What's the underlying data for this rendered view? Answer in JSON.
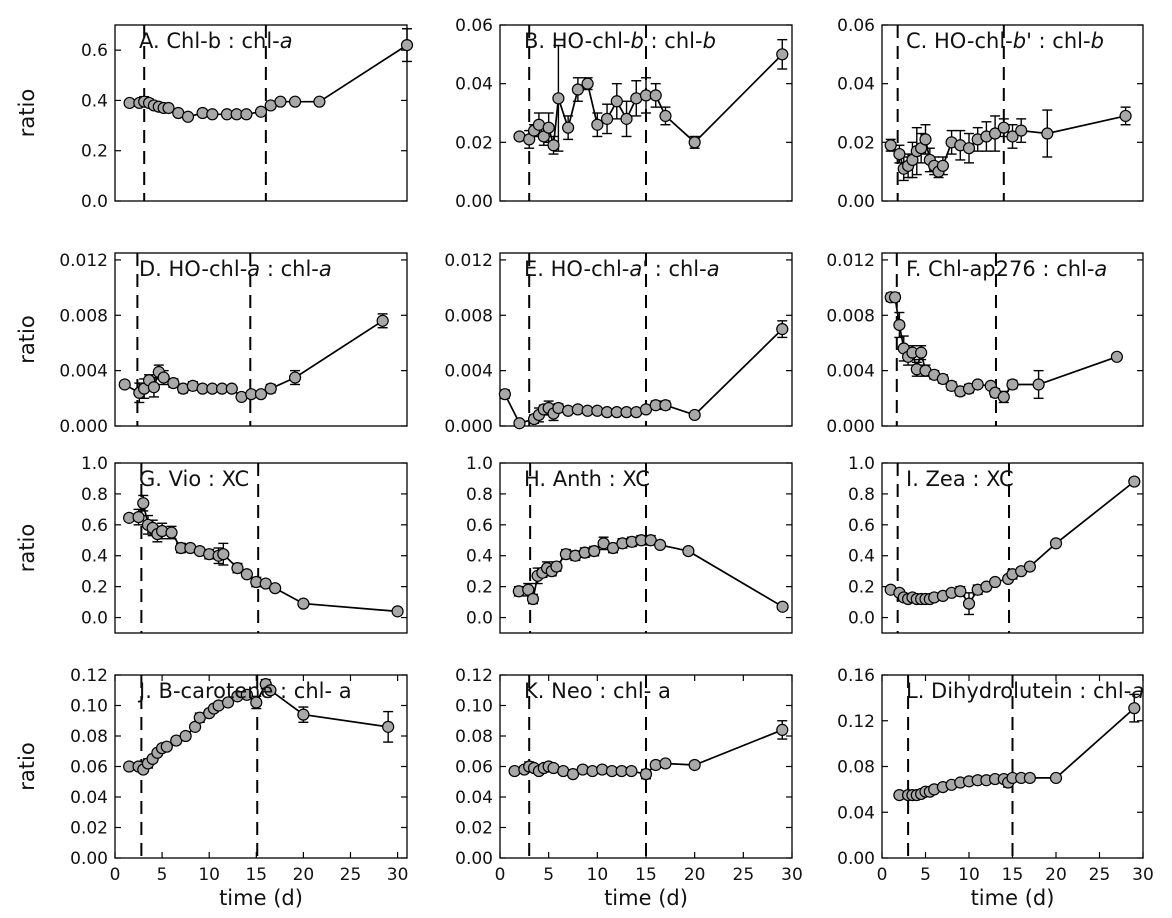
{
  "chart_data": [
    {
      "panel_id": "A",
      "type": "scatter",
      "title": "A. Chl-b : chl-a",
      "ylabel": "ratio",
      "xlabel": "",
      "xlim": [
        0,
        30
      ],
      "ylim": [
        0,
        0.7
      ],
      "yticks": [
        0.0,
        0.2,
        0.4,
        0.6
      ],
      "ytick_labels": [
        "0.0",
        "0.2",
        "0.4",
        "0.6"
      ],
      "xticks": [],
      "xtick_labels": [],
      "vlines": [
        3,
        15.5
      ],
      "x": [
        1.5,
        2.5,
        3.0,
        3.5,
        4.0,
        4.5,
        5.0,
        5.5,
        6.5,
        7.5,
        9.0,
        10.0,
        11.5,
        12.5,
        13.5,
        15.0,
        16.0,
        17.0,
        18.5,
        21.0,
        30.0
      ],
      "y": [
        0.39,
        0.39,
        0.395,
        0.39,
        0.38,
        0.375,
        0.37,
        0.37,
        0.35,
        0.335,
        0.35,
        0.345,
        0.345,
        0.345,
        0.345,
        0.355,
        0.38,
        0.395,
        0.395,
        0.395,
        0.62
      ],
      "yerr": [
        0.01,
        0.01,
        0.02,
        0.015,
        0.01,
        0.01,
        0.01,
        0.01,
        0.01,
        0.01,
        0.01,
        0.01,
        0.01,
        0.01,
        0.01,
        0.01,
        0.01,
        0.01,
        0.01,
        0.01,
        0.065
      ]
    },
    {
      "panel_id": "B",
      "type": "scatter",
      "title": "B. HO-chl-b : chl-b",
      "ylabel": "",
      "xlabel": "",
      "xlim": [
        0,
        30
      ],
      "ylim": [
        0,
        0.06
      ],
      "yticks": [
        0,
        0.02,
        0.04,
        0.06
      ],
      "ytick_labels": [
        "0.00",
        "0.02",
        "0.04",
        "0.06"
      ],
      "xticks": [],
      "xtick_labels": [],
      "vlines": [
        3,
        15
      ],
      "x": [
        2.0,
        3.0,
        3.5,
        4.0,
        4.5,
        5.0,
        5.5,
        6.0,
        7.0,
        8.0,
        9.0,
        10.0,
        11.0,
        12.0,
        13.0,
        14.0,
        15.0,
        16.0,
        17.0,
        20.0,
        29.0
      ],
      "y": [
        0.022,
        0.021,
        0.024,
        0.026,
        0.022,
        0.025,
        0.019,
        0.035,
        0.025,
        0.038,
        0.04,
        0.026,
        0.028,
        0.034,
        0.028,
        0.035,
        0.036,
        0.036,
        0.029,
        0.02,
        0.05
      ],
      "yerr": [
        0.001,
        0.003,
        0.002,
        0.004,
        0.003,
        0.005,
        0.003,
        0.018,
        0.004,
        0.004,
        0.002,
        0.004,
        0.005,
        0.006,
        0.006,
        0.006,
        0.006,
        0.004,
        0.003,
        0.002,
        0.005
      ]
    },
    {
      "panel_id": "C",
      "type": "scatter",
      "title": "C. HO-chl-b' : chl-b",
      "ylabel": "",
      "xlabel": "",
      "xlim": [
        0,
        30
      ],
      "ylim": [
        0,
        0.06
      ],
      "yticks": [
        0,
        0.02,
        0.04,
        0.06
      ],
      "ytick_labels": [
        "0.00",
        "0.02",
        "0.04",
        "0.06"
      ],
      "xticks": [],
      "xtick_labels": [],
      "vlines": [
        1.8,
        14
      ],
      "x": [
        1.0,
        2.0,
        2.5,
        3.0,
        3.5,
        4.0,
        4.5,
        5.0,
        5.5,
        6.0,
        6.5,
        7.0,
        8.0,
        9.0,
        10.0,
        11.0,
        12.0,
        13.0,
        14.0,
        15.0,
        16.0,
        19.0,
        28.0
      ],
      "y": [
        0.019,
        0.016,
        0.011,
        0.012,
        0.014,
        0.017,
        0.018,
        0.021,
        0.014,
        0.012,
        0.01,
        0.012,
        0.02,
        0.019,
        0.018,
        0.021,
        0.022,
        0.023,
        0.025,
        0.022,
        0.024,
        0.023,
        0.029
      ],
      "yerr": [
        0.002,
        0.003,
        0.004,
        0.004,
        0.006,
        0.008,
        0.005,
        0.005,
        0.004,
        0.003,
        0.002,
        0.003,
        0.004,
        0.005,
        0.005,
        0.004,
        0.005,
        0.006,
        0.003,
        0.004,
        0.004,
        0.008,
        0.003
      ]
    },
    {
      "panel_id": "D",
      "type": "scatter",
      "title": "D. HO-chl-a : chl-a",
      "ylabel": "ratio",
      "xlabel": "",
      "xlim": [
        0,
        30
      ],
      "ylim": [
        0,
        0.0125
      ],
      "yticks": [
        0,
        0.004,
        0.008,
        0.012
      ],
      "ytick_labels": [
        "0.000",
        "0.004",
        "0.008",
        "0.012"
      ],
      "xticks": [],
      "xtick_labels": [],
      "vlines": [
        2.3,
        13.9
      ],
      "x": [
        1.0,
        2.5,
        3.0,
        3.5,
        4.0,
        4.5,
        5.0,
        6.0,
        7.0,
        8.0,
        9.0,
        10.0,
        11.0,
        12.0,
        13.0,
        14.0,
        15.0,
        16.0,
        18.5,
        27.5
      ],
      "y": [
        0.003,
        0.0024,
        0.0027,
        0.0033,
        0.0028,
        0.0039,
        0.0035,
        0.0031,
        0.0027,
        0.0029,
        0.0027,
        0.0027,
        0.0027,
        0.0027,
        0.0021,
        0.0023,
        0.0023,
        0.0027,
        0.0035,
        0.0076
      ],
      "yerr": [
        0.0002,
        0.0007,
        0.0007,
        0.0004,
        0.0007,
        0.0005,
        0.0005,
        0.0003,
        0.0003,
        0.0003,
        0.0002,
        0.0002,
        0.0002,
        0.0002,
        0.0002,
        0.0002,
        0.0002,
        0.0003,
        0.0005,
        0.0005
      ]
    },
    {
      "panel_id": "E",
      "type": "scatter",
      "title": "E. HO-chl-a' : chl-a",
      "ylabel": "",
      "xlabel": "",
      "xlim": [
        0,
        30
      ],
      "ylim": [
        0,
        0.0125
      ],
      "yticks": [
        0,
        0.004,
        0.008,
        0.012
      ],
      "ytick_labels": [
        "0.000",
        "0.004",
        "0.008",
        "0.012"
      ],
      "xticks": [],
      "xtick_labels": [],
      "vlines": [
        3,
        15
      ],
      "x": [
        0.5,
        2.0,
        3.5,
        4.0,
        4.5,
        5.0,
        5.5,
        6.0,
        7.0,
        8.0,
        9.0,
        10.0,
        11.0,
        12.0,
        13.0,
        14.0,
        15.0,
        16.0,
        17.0,
        20.0,
        29.0
      ],
      "y": [
        0.0023,
        0.0002,
        0.0005,
        0.0008,
        0.0012,
        0.0013,
        0.0009,
        0.0013,
        0.0011,
        0.0012,
        0.0011,
        0.0011,
        0.001,
        0.001,
        0.001,
        0.001,
        0.0012,
        0.0015,
        0.0015,
        0.0008,
        0.007
      ],
      "yerr": [
        0.0003,
        0.0002,
        0.0003,
        0.0005,
        0.0003,
        0.0005,
        0.0005,
        0.0003,
        0.0002,
        0.0002,
        0.0002,
        0.0002,
        0.0002,
        0.0002,
        0.0002,
        0.0002,
        0.0002,
        0.0003,
        0.0003,
        0.0002,
        0.0006
      ]
    },
    {
      "panel_id": "F",
      "type": "scatter",
      "title": "F. Chl-ap276 : chl-a",
      "ylabel": "",
      "xlabel": "",
      "xlim": [
        0,
        30
      ],
      "ylim": [
        0,
        0.0125
      ],
      "yticks": [
        0,
        0.004,
        0.008,
        0.012
      ],
      "ytick_labels": [
        "0.000",
        "0.004",
        "0.008",
        "0.012"
      ],
      "xticks": [],
      "xtick_labels": [],
      "vlines": [
        1.7,
        13.1
      ],
      "x": [
        1.0,
        1.5,
        2.0,
        2.5,
        3.0,
        3.5,
        4.0,
        4.5,
        5.0,
        6.0,
        7.0,
        8.0,
        9.0,
        10.0,
        11.0,
        12.5,
        13.0,
        14.0,
        15.0,
        18.0,
        27.0
      ],
      "y": [
        0.0093,
        0.0093,
        0.0073,
        0.0056,
        0.005,
        0.0053,
        0.0041,
        0.0053,
        0.004,
        0.0037,
        0.0034,
        0.0029,
        0.0025,
        0.0027,
        0.003,
        0.0029,
        0.0024,
        0.0021,
        0.003,
        0.003,
        0.005
      ],
      "yerr": [
        0.0003,
        0.0003,
        0.0009,
        0.0009,
        0.0006,
        0.0005,
        0.0005,
        0.0005,
        0.0004,
        0.0003,
        0.0003,
        0.0003,
        0.0003,
        0.0003,
        0.0002,
        0.0002,
        0.0003,
        0.0004,
        0.0003,
        0.001,
        0.0002
      ]
    },
    {
      "panel_id": "G",
      "type": "scatter",
      "title": "G. Vio : XC",
      "ylabel": "ratio",
      "xlabel": "",
      "xlim": [
        0,
        31
      ],
      "ylim": [
        -0.1,
        1.0
      ],
      "yticks": [
        0,
        0.2,
        0.4,
        0.6,
        0.8,
        1.0
      ],
      "ytick_labels": [
        "0.0",
        "0.2",
        "0.4",
        "0.6",
        "0.8",
        "1.0"
      ],
      "xticks": [],
      "xtick_labels": [],
      "vlines": [
        2.8,
        15.2
      ],
      "x": [
        1.5,
        2.5,
        3.0,
        3.5,
        4.0,
        4.5,
        5.0,
        6.0,
        7.0,
        8.0,
        9.0,
        10.0,
        11.0,
        11.5,
        13.0,
        14.0,
        15.0,
        16.0,
        17.0,
        20.0,
        30.0
      ],
      "y": [
        0.645,
        0.65,
        0.74,
        0.6,
        0.58,
        0.54,
        0.56,
        0.55,
        0.45,
        0.45,
        0.43,
        0.41,
        0.4,
        0.41,
        0.32,
        0.28,
        0.23,
        0.22,
        0.19,
        0.09,
        0.04
      ],
      "yerr": [
        0.02,
        0.05,
        0.05,
        0.06,
        0.05,
        0.05,
        0.05,
        0.04,
        0.03,
        0.02,
        0.02,
        0.03,
        0.05,
        0.07,
        0.03,
        0.02,
        0.03,
        0.02,
        0.02,
        0.02,
        0.01
      ]
    },
    {
      "panel_id": "H",
      "type": "scatter",
      "title": "H. Anth : XC",
      "ylabel": "",
      "xlabel": "",
      "xlim": [
        0,
        31
      ],
      "ylim": [
        -0.1,
        1.0
      ],
      "yticks": [
        0,
        0.2,
        0.4,
        0.6,
        0.8,
        1.0
      ],
      "ytick_labels": [
        "0.0",
        "0.2",
        "0.4",
        "0.6",
        "0.8",
        "1.0"
      ],
      "xticks": [],
      "xtick_labels": [],
      "vlines": [
        3.2,
        15.5
      ],
      "x": [
        2.0,
        3.0,
        3.5,
        4.0,
        4.5,
        5.0,
        5.5,
        6.0,
        7.0,
        8.0,
        9.0,
        10.0,
        11.0,
        12.0,
        13.0,
        14.0,
        15.0,
        16.0,
        17.0,
        20.0,
        30.0
      ],
      "y": [
        0.17,
        0.18,
        0.12,
        0.27,
        0.29,
        0.32,
        0.3,
        0.33,
        0.41,
        0.4,
        0.42,
        0.43,
        0.48,
        0.45,
        0.48,
        0.49,
        0.5,
        0.5,
        0.47,
        0.43,
        0.07
      ],
      "yerr": [
        0.03,
        0.04,
        0.03,
        0.05,
        0.03,
        0.04,
        0.03,
        0.03,
        0.03,
        0.03,
        0.03,
        0.03,
        0.04,
        0.03,
        0.03,
        0.03,
        0.03,
        0.03,
        0.02,
        0.02,
        0.02
      ]
    },
    {
      "panel_id": "I",
      "type": "scatter",
      "title": "I. Zea : XC",
      "ylabel": "",
      "xlabel": "",
      "xlim": [
        0,
        30
      ],
      "ylim": [
        -0.1,
        1.0
      ],
      "yticks": [
        0,
        0.2,
        0.4,
        0.6,
        0.8,
        1.0
      ],
      "ytick_labels": [
        "0.0",
        "0.2",
        "0.4",
        "0.6",
        "0.8",
        "1.0"
      ],
      "xticks": [],
      "xtick_labels": [],
      "vlines": [
        1.8,
        14.6
      ],
      "x": [
        1.0,
        2.0,
        2.5,
        3.0,
        3.5,
        4.0,
        4.5,
        5.0,
        5.5,
        6.0,
        7.0,
        8.0,
        9.0,
        10.0,
        11.0,
        12.0,
        13.0,
        14.5,
        15.0,
        16.0,
        17.0,
        20.0,
        29.0
      ],
      "y": [
        0.18,
        0.16,
        0.13,
        0.12,
        0.13,
        0.12,
        0.12,
        0.12,
        0.12,
        0.13,
        0.14,
        0.16,
        0.17,
        0.09,
        0.18,
        0.2,
        0.23,
        0.25,
        0.28,
        0.3,
        0.33,
        0.48,
        0.88
      ],
      "yerr": [
        0.02,
        0.02,
        0.02,
        0.02,
        0.02,
        0.02,
        0.02,
        0.02,
        0.02,
        0.02,
        0.02,
        0.02,
        0.03,
        0.07,
        0.03,
        0.02,
        0.02,
        0.02,
        0.03,
        0.02,
        0.02,
        0.02,
        0.02
      ]
    },
    {
      "panel_id": "J",
      "type": "scatter",
      "title": "J. B-carotene : chl- a",
      "ylabel": "ratio",
      "xlabel": "time (d)",
      "xlim": [
        0,
        31
      ],
      "ylim": [
        0,
        0.12
      ],
      "yticks": [
        0,
        0.02,
        0.04,
        0.06,
        0.08,
        0.1,
        0.12
      ],
      "ytick_labels": [
        "0.00",
        "0.02",
        "0.04",
        "0.06",
        "0.08",
        "0.10",
        "0.12"
      ],
      "xticks": [
        0,
        5,
        10,
        15,
        20,
        25,
        30
      ],
      "xtick_labels": [
        "0",
        "5",
        "10",
        "15",
        "20",
        "25",
        "30"
      ],
      "vlines": [
        2.8,
        15.1
      ],
      "x": [
        1.5,
        2.5,
        3.0,
        3.5,
        4.0,
        4.5,
        5.0,
        5.5,
        6.5,
        7.5,
        8.5,
        9.0,
        10.0,
        10.5,
        11.0,
        12.0,
        13.0,
        14.0,
        15.0,
        16.0,
        16.5,
        20.0,
        29.0
      ],
      "y": [
        0.06,
        0.06,
        0.058,
        0.062,
        0.065,
        0.069,
        0.072,
        0.073,
        0.077,
        0.08,
        0.086,
        0.092,
        0.095,
        0.098,
        0.1,
        0.102,
        0.106,
        0.107,
        0.102,
        0.114,
        0.11,
        0.094,
        0.086
      ],
      "yerr": [
        0.002,
        0.002,
        0.002,
        0.003,
        0.002,
        0.002,
        0.002,
        0.002,
        0.002,
        0.002,
        0.002,
        0.003,
        0.002,
        0.002,
        0.002,
        0.002,
        0.002,
        0.002,
        0.004,
        0.003,
        0.002,
        0.005,
        0.01
      ]
    },
    {
      "panel_id": "K",
      "type": "scatter",
      "title": "K. Neo : chl- a",
      "ylabel": "",
      "xlabel": "time (d)",
      "xlim": [
        0,
        30
      ],
      "ylim": [
        0,
        0.12
      ],
      "yticks": [
        0,
        0.02,
        0.04,
        0.06,
        0.08,
        0.1,
        0.12
      ],
      "ytick_labels": [
        "0.00",
        "0.02",
        "0.04",
        "0.06",
        "0.08",
        "0.10",
        "0.12"
      ],
      "xticks": [
        0,
        5,
        10,
        15,
        20,
        25,
        30
      ],
      "xtick_labels": [
        "0",
        "5",
        "10",
        "15",
        "20",
        "25",
        "30"
      ],
      "vlines": [
        3,
        15
      ],
      "x": [
        1.5,
        2.5,
        3.0,
        3.5,
        4.0,
        4.5,
        5.0,
        5.5,
        6.5,
        7.5,
        8.5,
        9.5,
        10.5,
        11.5,
        12.5,
        13.5,
        15.0,
        16.0,
        17.0,
        20.0,
        29.0
      ],
      "y": [
        0.057,
        0.058,
        0.06,
        0.059,
        0.057,
        0.059,
        0.06,
        0.059,
        0.057,
        0.055,
        0.058,
        0.057,
        0.058,
        0.057,
        0.057,
        0.057,
        0.055,
        0.061,
        0.062,
        0.061,
        0.084
      ],
      "yerr": [
        0.002,
        0.002,
        0.003,
        0.002,
        0.002,
        0.002,
        0.002,
        0.002,
        0.002,
        0.002,
        0.002,
        0.002,
        0.002,
        0.002,
        0.002,
        0.002,
        0.003,
        0.002,
        0.002,
        0.002,
        0.006
      ]
    },
    {
      "panel_id": "L",
      "type": "scatter",
      "title": "L. Dihydrolutein : chl-a",
      "ylabel": "",
      "xlabel": "time (d)",
      "xlim": [
        0,
        30
      ],
      "ylim": [
        0,
        0.16
      ],
      "yticks": [
        0,
        0.04,
        0.08,
        0.12,
        0.16
      ],
      "ytick_labels": [
        "0.00",
        "0.04",
        "0.08",
        "0.12",
        "0.16"
      ],
      "xticks": [
        0,
        5,
        10,
        15,
        20,
        25,
        30
      ],
      "xtick_labels": [
        "0",
        "5",
        "10",
        "15",
        "20",
        "25",
        "30"
      ],
      "vlines": [
        3,
        15
      ],
      "x": [
        2.0,
        3.0,
        3.5,
        4.0,
        4.5,
        5.0,
        5.5,
        6.0,
        7.0,
        8.0,
        9.0,
        10.0,
        11.0,
        12.0,
        13.0,
        14.0,
        14.5,
        15.0,
        16.0,
        17.0,
        20.0,
        29.0
      ],
      "y": [
        0.055,
        0.055,
        0.055,
        0.055,
        0.056,
        0.058,
        0.058,
        0.06,
        0.062,
        0.064,
        0.066,
        0.067,
        0.068,
        0.068,
        0.069,
        0.069,
        0.066,
        0.07,
        0.07,
        0.07,
        0.07,
        0.131
      ],
      "yerr": [
        0.002,
        0.003,
        0.003,
        0.003,
        0.003,
        0.002,
        0.002,
        0.002,
        0.002,
        0.002,
        0.002,
        0.002,
        0.002,
        0.002,
        0.002,
        0.002,
        0.004,
        0.002,
        0.002,
        0.002,
        0.002,
        0.012
      ]
    }
  ]
}
